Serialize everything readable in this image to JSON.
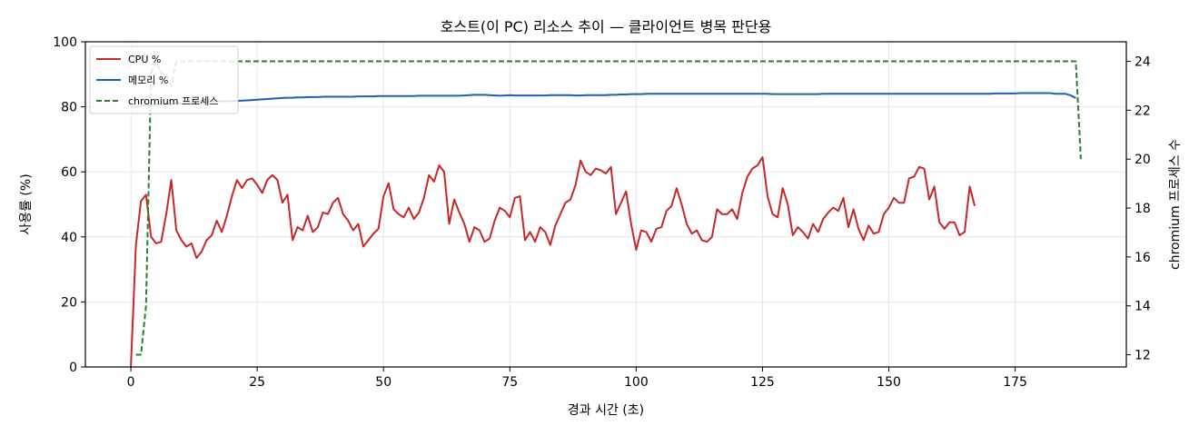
{
  "chart_data": {
    "type": "line",
    "title": "호스트(이 PC) 리소스 추이 — 클라이언트 병목 판단용",
    "xlabel": "경과 시간 (초)",
    "ylabel": "사용률 (%)",
    "y2label": "chromium 프로세스 수",
    "xlim": [
      -9,
      197
    ],
    "ylim": [
      0,
      100
    ],
    "y2lim": [
      11.5,
      24.8
    ],
    "xticks": [
      "0",
      "25",
      "50",
      "75",
      "100",
      "125",
      "150",
      "175"
    ],
    "yticks": [
      "0",
      "20",
      "40",
      "60",
      "80",
      "100"
    ],
    "y2ticks": [
      "12",
      "14",
      "16",
      "18",
      "20",
      "22",
      "24"
    ],
    "grid": true,
    "legend_position": "top-left",
    "series": [
      {
        "name": "CPU %",
        "axis": "left",
        "color": "#c62828",
        "style": "solid",
        "x_start": 0,
        "x_step": 1,
        "values": [
          0,
          37.5,
          51,
          53,
          40,
          38,
          38.5,
          47,
          57.5,
          42,
          39,
          37,
          38,
          33.5,
          35.5,
          39,
          40.5,
          45,
          41.5,
          46.5,
          52.5,
          57.5,
          55,
          57.5,
          58,
          56,
          53.5,
          57.5,
          59,
          57.5,
          50.5,
          53,
          39,
          43,
          42,
          46.5,
          41.5,
          43,
          47.5,
          47,
          50.5,
          52,
          47,
          45,
          42,
          44,
          37,
          39,
          41,
          42.5,
          52.5,
          56.5,
          48.5,
          47,
          46,
          49,
          45.5,
          47.5,
          52,
          59,
          57,
          62,
          60,
          44,
          51.5,
          47.5,
          44,
          38.5,
          43,
          42,
          38.5,
          39.5,
          45,
          49,
          48,
          46,
          52,
          52.5,
          39,
          41.5,
          38.5,
          43,
          41.5,
          37.5,
          43.5,
          47,
          50.5,
          51.5,
          56,
          63.5,
          60,
          59,
          61,
          60.5,
          59.5,
          61.5,
          47,
          50.5,
          54,
          44,
          36,
          42,
          41.5,
          38.5,
          42.5,
          43,
          48,
          49.5,
          55,
          50,
          44,
          41,
          42,
          39,
          38.5,
          40,
          48.5,
          47,
          47,
          48.5,
          45.5,
          53.5,
          58.5,
          61,
          62,
          64.5,
          52.5,
          47,
          46,
          55,
          50,
          40.5,
          43,
          41.5,
          39.5,
          44,
          41.5,
          45.5,
          47.5,
          49,
          48,
          52,
          43,
          48.5,
          42.5,
          39,
          43.5,
          41,
          41.5,
          47,
          49,
          52,
          50.5,
          50.5,
          58,
          58.5,
          61.5,
          61,
          51.5,
          55.5,
          44.5,
          42.5,
          44.5,
          44.5,
          40.5,
          41.5,
          55.5,
          49.5
        ]
      },
      {
        "name": "메모리 %",
        "axis": "left",
        "color": "#1f5fb0",
        "style": "solid",
        "x_start": 0,
        "x_step": 1,
        "values": [
          80,
          80,
          80.3,
          80.4,
          80.5,
          80.6,
          80.7,
          80.8,
          80.9,
          81,
          81.1,
          81.2,
          81.3,
          81.4,
          81.5,
          81.5,
          81.6,
          81.6,
          81.7,
          81.7,
          81.8,
          81.8,
          81.9,
          82,
          82.1,
          82.2,
          82.3,
          82.4,
          82.5,
          82.6,
          82.7,
          82.8,
          82.8,
          82.9,
          82.9,
          83,
          83,
          83,
          83.1,
          83.1,
          83.1,
          83.1,
          83.1,
          83.1,
          83.1,
          83.2,
          83.2,
          83.2,
          83.2,
          83.3,
          83.3,
          83.3,
          83.3,
          83.3,
          83.3,
          83.3,
          83.3,
          83.4,
          83.4,
          83.4,
          83.4,
          83.4,
          83.4,
          83.4,
          83.4,
          83.4,
          83.5,
          83.6,
          83.7,
          83.7,
          83.7,
          83.6,
          83.5,
          83.4,
          83.5,
          83.6,
          83.5,
          83.5,
          83.5,
          83.5,
          83.5,
          83.5,
          83.5,
          83.6,
          83.6,
          83.6,
          83.6,
          83.6,
          83.5,
          83.5,
          83.6,
          83.6,
          83.6,
          83.6,
          83.6,
          83.7,
          83.7,
          83.8,
          83.8,
          83.9,
          83.9,
          83.9,
          84,
          84,
          84,
          84,
          84,
          84,
          84,
          84,
          84,
          84,
          84,
          84,
          84,
          84,
          84,
          84,
          84,
          84,
          84,
          84,
          84,
          84,
          84,
          84,
          84,
          83.9,
          83.9,
          83.9,
          83.9,
          83.9,
          83.9,
          83.9,
          83.9,
          83.9,
          83.9,
          84,
          84,
          84,
          84,
          84,
          84,
          84,
          84,
          84,
          84,
          84,
          84,
          84,
          84,
          84,
          84,
          84,
          84,
          84,
          84,
          84,
          84,
          84,
          84,
          84,
          84,
          84,
          84,
          84,
          84,
          84,
          84,
          84,
          84,
          84.1,
          84.1,
          84.1,
          84.1,
          84.1,
          84.2,
          84.2,
          84.2,
          84.2,
          84.2,
          84.2,
          84.2,
          84,
          84,
          84,
          83.5,
          82.7
        ]
      },
      {
        "name": "chromium 프로세스",
        "axis": "right",
        "color": "#2e7d32",
        "style": "dashed",
        "x": [
          1,
          2,
          3,
          4,
          5,
          6,
          7,
          8,
          9,
          10,
          11,
          12,
          186,
          187,
          188
        ],
        "values": [
          12,
          12,
          14,
          23.5,
          24,
          23.5,
          23.5,
          23,
          24,
          24,
          24,
          24,
          24,
          24,
          20
        ]
      }
    ]
  }
}
